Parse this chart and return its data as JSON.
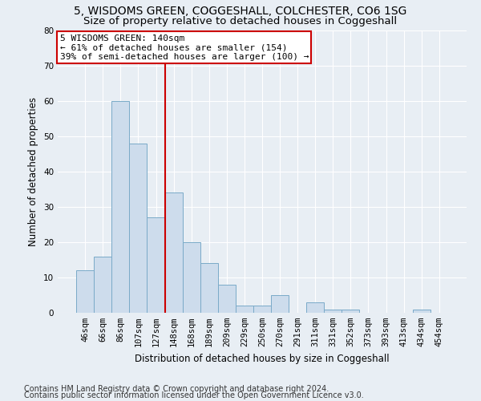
{
  "title": "5, WISDOMS GREEN, COGGESHALL, COLCHESTER, CO6 1SG",
  "subtitle": "Size of property relative to detached houses in Coggeshall",
  "xlabel": "Distribution of detached houses by size in Coggeshall",
  "ylabel": "Number of detached properties",
  "bar_color": "#cddcec",
  "bar_edge_color": "#7aaac8",
  "categories": [
    "46sqm",
    "66sqm",
    "86sqm",
    "107sqm",
    "127sqm",
    "148sqm",
    "168sqm",
    "189sqm",
    "209sqm",
    "229sqm",
    "250sqm",
    "270sqm",
    "291sqm",
    "311sqm",
    "331sqm",
    "352sqm",
    "373sqm",
    "393sqm",
    "413sqm",
    "434sqm",
    "454sqm"
  ],
  "values": [
    12,
    16,
    60,
    48,
    27,
    34,
    20,
    14,
    8,
    2,
    2,
    5,
    0,
    3,
    1,
    1,
    0,
    0,
    0,
    1,
    0
  ],
  "ylim": [
    0,
    80
  ],
  "yticks": [
    0,
    10,
    20,
    30,
    40,
    50,
    60,
    70,
    80
  ],
  "vline_x": 4.5,
  "annotation_line1": "5 WISDOMS GREEN: 140sqm",
  "annotation_line2": "← 61% of detached houses are smaller (154)",
  "annotation_line3": "39% of semi-detached houses are larger (100) →",
  "annotation_box_color": "white",
  "annotation_box_edge_color": "#cc0000",
  "vline_color": "#cc0000",
  "footer1": "Contains HM Land Registry data © Crown copyright and database right 2024.",
  "footer2": "Contains public sector information licensed under the Open Government Licence v3.0.",
  "bg_color": "#e8eef4",
  "plot_bg_color": "#e8eef4",
  "grid_color": "#ffffff",
  "title_fontsize": 10,
  "subtitle_fontsize": 9.5,
  "axis_label_fontsize": 8.5,
  "tick_fontsize": 7.5,
  "annotation_fontsize": 8,
  "footer_fontsize": 7
}
